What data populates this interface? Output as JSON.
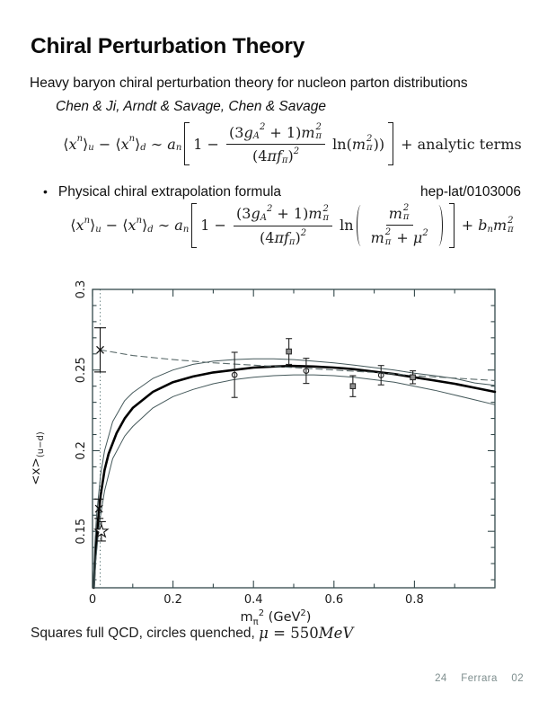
{
  "slide": {
    "title": "Chiral Perturbation Theory",
    "subtitle": "Heavy baryon chiral perturbation theory for nucleon parton distributions",
    "authors": "Chen & Ji, Arndt & Savage, Chen & Savage",
    "bullet_char": "•",
    "bullet_text": "Physical chiral extrapolation formula",
    "reference": "hep-lat/0103006",
    "caption_tokens": [
      {
        "s": "Squares full QCD, circles quenched, "
      },
      {
        "i": "μ"
      },
      {
        "r": " = 550"
      },
      {
        "i": "MeV"
      }
    ],
    "footer": {
      "page_number": "24",
      "venue": "Ferrara",
      "year": "02",
      "color": "#7e8e8e"
    }
  },
  "equations": {
    "eq1": [
      {
        "r": "⟨"
      },
      {
        "i": "x"
      },
      {
        "sup": "n"
      },
      {
        "r": "⟩"
      },
      {
        "sub": "u"
      },
      {
        "r": " − "
      },
      {
        "r": "⟨"
      },
      {
        "i": "x"
      },
      {
        "sup": "n"
      },
      {
        "r": "⟩"
      },
      {
        "sub": "d"
      },
      {
        "r": " ∼ "
      },
      {
        "i": "a"
      },
      {
        "sub": "n"
      },
      {
        "big": "["
      },
      {
        "r": "1 − "
      },
      {
        "frac": {
          "num": [
            {
              "r": "(3"
            },
            {
              "i": "g"
            },
            {
              "sub": "A"
            },
            {
              "sup": "2"
            },
            {
              "r": " + 1)"
            },
            {
              "i": "m"
            },
            {
              "ss": {
                "sup": "2",
                "sub": "π"
              }
            }
          ],
          "den": [
            {
              "r": "(4"
            },
            {
              "i": "πf"
            },
            {
              "sub": "π"
            },
            {
              "r": ")"
            },
            {
              "sup": "2"
            }
          ]
        }
      },
      {
        "r": " ln("
      },
      {
        "i": "m"
      },
      {
        "ss": {
          "sup": "2",
          "sub": "π"
        }
      },
      {
        "r": "))"
      },
      {
        "big": "]"
      },
      {
        "r": " + analytic terms"
      }
    ],
    "eq2": [
      {
        "r": "⟨"
      },
      {
        "i": "x"
      },
      {
        "sup": "n"
      },
      {
        "r": "⟩"
      },
      {
        "sub": "u"
      },
      {
        "r": " − "
      },
      {
        "r": "⟨"
      },
      {
        "i": "x"
      },
      {
        "sup": "n"
      },
      {
        "r": "⟩"
      },
      {
        "sub": "d"
      },
      {
        "r": " ∼ "
      },
      {
        "i": "a"
      },
      {
        "sub": "n"
      },
      {
        "big": "["
      },
      {
        "r": "1 − "
      },
      {
        "frac": {
          "num": [
            {
              "r": "(3"
            },
            {
              "i": "g"
            },
            {
              "sub": "A"
            },
            {
              "sup": "2"
            },
            {
              "r": " + 1)"
            },
            {
              "i": "m"
            },
            {
              "ss": {
                "sup": "2",
                "sub": "π"
              }
            }
          ],
          "den": [
            {
              "r": "(4"
            },
            {
              "i": "πf"
            },
            {
              "sub": "π"
            },
            {
              "r": ")"
            },
            {
              "sup": "2"
            }
          ]
        }
      },
      {
        "r": " ln"
      },
      {
        "big": "("
      },
      {
        "frac": {
          "num": [
            {
              "i": "m"
            },
            {
              "ss": {
                "sup": "2",
                "sub": "π"
              }
            }
          ],
          "den": [
            {
              "i": "m"
            },
            {
              "ss": {
                "sup": "2",
                "sub": "π"
              }
            },
            {
              "r": " + "
            },
            {
              "i": "μ"
            },
            {
              "sup": "2"
            }
          ]
        }
      },
      {
        "big": ")"
      },
      {
        "big": "]"
      },
      {
        "r": " + "
      },
      {
        "i": "b"
      },
      {
        "sub": "n"
      },
      {
        "i": "m"
      },
      {
        "ss": {
          "sup": "2",
          "sub": "π"
        }
      }
    ]
  },
  "chart_data": {
    "type": "line",
    "title": "",
    "xlabel_tokens": [
      {
        "s": "m"
      },
      {
        "sub": "π"
      },
      {
        "sup": "2"
      },
      {
        "s": " (GeV"
      },
      {
        "sup": "2"
      },
      {
        "s": ")"
      }
    ],
    "ylabel_tokens": [
      {
        "s": "<x>"
      },
      {
        "sub": "(u−d)"
      }
    ],
    "xlim": [
      0,
      1.0
    ],
    "ylim": [
      0.115,
      0.3
    ],
    "x_major_ticks": [
      0,
      0.2,
      0.4,
      0.6,
      0.8
    ],
    "x_tick_labels": [
      "0",
      "0.2",
      "0.4",
      "0.6",
      "0.8"
    ],
    "x_minor_ticks": [
      0.1,
      0.3,
      0.5,
      0.7,
      0.9
    ],
    "y_major_ticks": [
      0.15,
      0.2,
      0.25,
      0.3
    ],
    "y_tick_labels": [
      "0.15",
      "0.2",
      "0.25",
      "0.3"
    ],
    "y_minor_step": 0.01,
    "grid": false,
    "legend": "none",
    "frame_color": "#33484a",
    "tick_label_color": "#1a1a1a",
    "vline": {
      "x": 0.019,
      "style": "dotted",
      "color": "#4a6a6a"
    },
    "series": [
      {
        "name": "chiral-fit-central",
        "style": "solid",
        "width": 2.6,
        "color": "#000000",
        "points": [
          [
            0.003,
            0.115
          ],
          [
            0.006,
            0.131
          ],
          [
            0.01,
            0.145
          ],
          [
            0.015,
            0.16
          ],
          [
            0.02,
            0.172
          ],
          [
            0.03,
            0.188
          ],
          [
            0.04,
            0.198
          ],
          [
            0.06,
            0.211
          ],
          [
            0.08,
            0.22
          ],
          [
            0.1,
            0.2265
          ],
          [
            0.15,
            0.2365
          ],
          [
            0.2,
            0.2425
          ],
          [
            0.25,
            0.246
          ],
          [
            0.3,
            0.2485
          ],
          [
            0.35,
            0.25
          ],
          [
            0.4,
            0.2515
          ],
          [
            0.45,
            0.2522
          ],
          [
            0.5,
            0.2525
          ],
          [
            0.55,
            0.2522
          ],
          [
            0.6,
            0.2515
          ],
          [
            0.65,
            0.2505
          ],
          [
            0.7,
            0.249
          ],
          [
            0.75,
            0.2475
          ],
          [
            0.8,
            0.2455
          ],
          [
            0.85,
            0.2435
          ],
          [
            0.9,
            0.2415
          ],
          [
            0.95,
            0.239
          ],
          [
            1.0,
            0.2365
          ]
        ]
      },
      {
        "name": "fit-band-upper",
        "style": "solid",
        "width": 1,
        "color": "#44585a",
        "points": [
          [
            0.002,
            0.115
          ],
          [
            0.005,
            0.138
          ],
          [
            0.01,
            0.16
          ],
          [
            0.02,
            0.185
          ],
          [
            0.03,
            0.2
          ],
          [
            0.05,
            0.218
          ],
          [
            0.08,
            0.231
          ],
          [
            0.1,
            0.236
          ],
          [
            0.15,
            0.2448
          ],
          [
            0.2,
            0.25
          ],
          [
            0.25,
            0.2535
          ],
          [
            0.3,
            0.2555
          ],
          [
            0.35,
            0.2565
          ],
          [
            0.4,
            0.257
          ],
          [
            0.45,
            0.257
          ],
          [
            0.5,
            0.2565
          ],
          [
            0.55,
            0.2555
          ],
          [
            0.6,
            0.2545
          ],
          [
            0.65,
            0.253
          ],
          [
            0.7,
            0.2515
          ],
          [
            0.75,
            0.25
          ],
          [
            0.8,
            0.248
          ],
          [
            0.85,
            0.2465
          ],
          [
            0.9,
            0.2448
          ],
          [
            0.95,
            0.242
          ],
          [
            1.0,
            0.2405
          ]
        ]
      },
      {
        "name": "fit-band-lower",
        "style": "solid",
        "width": 1,
        "color": "#44585a",
        "points": [
          [
            0.0045,
            0.115
          ],
          [
            0.008,
            0.132
          ],
          [
            0.015,
            0.15
          ],
          [
            0.02,
            0.16
          ],
          [
            0.03,
            0.175
          ],
          [
            0.05,
            0.195
          ],
          [
            0.08,
            0.209
          ],
          [
            0.1,
            0.215
          ],
          [
            0.15,
            0.2265
          ],
          [
            0.2,
            0.2335
          ],
          [
            0.25,
            0.238
          ],
          [
            0.3,
            0.2415
          ],
          [
            0.35,
            0.244
          ],
          [
            0.4,
            0.2455
          ],
          [
            0.45,
            0.2465
          ],
          [
            0.5,
            0.247
          ],
          [
            0.55,
            0.247
          ],
          [
            0.6,
            0.2465
          ],
          [
            0.65,
            0.2455
          ],
          [
            0.7,
            0.244
          ],
          [
            0.75,
            0.2425
          ],
          [
            0.8,
            0.24
          ],
          [
            0.85,
            0.2375
          ],
          [
            0.9,
            0.2345
          ],
          [
            0.95,
            0.2315
          ],
          [
            1.0,
            0.2285
          ]
        ]
      },
      {
        "name": "linear-extrapolation",
        "style": "dashed",
        "width": 1.1,
        "color": "#5a6a6a",
        "points": [
          [
            0.019,
            0.2625
          ],
          [
            0.1,
            0.259
          ],
          [
            0.2,
            0.2565
          ],
          [
            0.3,
            0.2545
          ],
          [
            0.4,
            0.253
          ],
          [
            0.5,
            0.2515
          ],
          [
            0.6,
            0.25
          ],
          [
            0.7,
            0.2485
          ],
          [
            0.8,
            0.2465
          ],
          [
            0.9,
            0.245
          ],
          [
            1.0,
            0.2435
          ]
        ]
      }
    ],
    "point_series": [
      {
        "name": "full-qcd-squares",
        "marker": "square",
        "color": "#222222",
        "fill": "#8f8f8f",
        "cap": 7,
        "data": [
          {
            "x": 0.488,
            "y": 0.2615,
            "err": 0.008
          },
          {
            "x": 0.647,
            "y": 0.24,
            "err": 0.0065
          },
          {
            "x": 0.796,
            "y": 0.2455,
            "err": 0.004
          }
        ]
      },
      {
        "name": "quenched-circles",
        "marker": "circle",
        "color": "#222222",
        "fill": "none",
        "cap": 7,
        "data": [
          {
            "x": 0.353,
            "y": 0.247,
            "err": 0.014
          },
          {
            "x": 0.531,
            "y": 0.2495,
            "err": 0.0078
          },
          {
            "x": 0.717,
            "y": 0.2468,
            "err": 0.006
          }
        ]
      },
      {
        "name": "linear-extrapolated-point-cross",
        "marker": "cross",
        "color": "#111111",
        "fill": "none",
        "cap": 13,
        "data": [
          {
            "x": 0.019,
            "y": 0.2625,
            "err": 0.0137
          }
        ]
      },
      {
        "name": "chiral-fit-physical-cross",
        "marker": "cross",
        "color": "#111111",
        "fill": "none",
        "cap": 10,
        "data": [
          {
            "x": 0.016,
            "y": 0.164,
            "err": 0.006
          }
        ]
      },
      {
        "name": "experiment-star",
        "marker": "star",
        "color": "#111111",
        "fill": "#ffffff",
        "cap": 10,
        "data": [
          {
            "x": 0.022,
            "y": 0.15,
            "err": 0.006
          }
        ]
      }
    ]
  },
  "colors": {
    "background": "#ffffff",
    "text": "#111111",
    "equation": "#1c1c1c",
    "plot_frame": "#33484a",
    "footer_gray": "#7e8e8e"
  }
}
